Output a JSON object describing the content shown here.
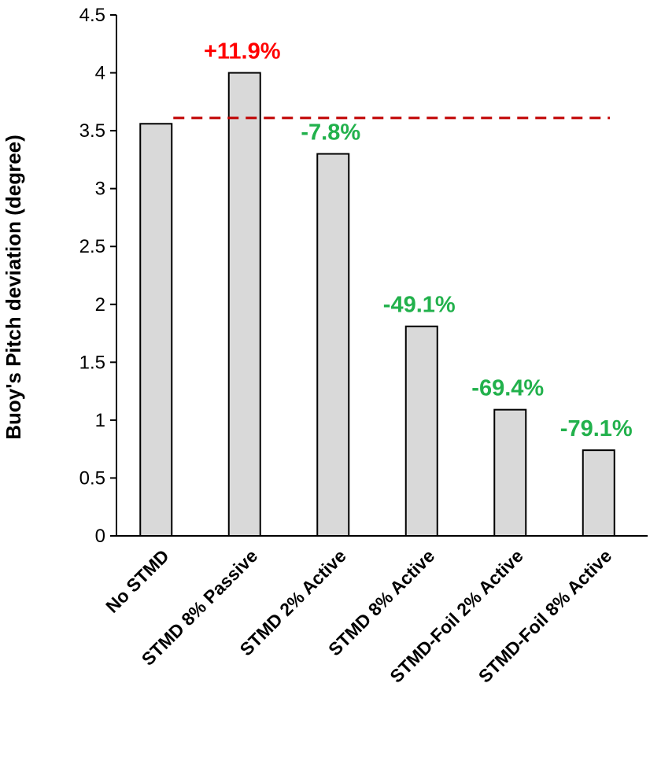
{
  "chart_data": {
    "type": "bar",
    "categories": [
      "No STMD",
      "STMD 8% Passive",
      "STMD 2% Active",
      "STMD 8% Active",
      "STMD-Foil 2% Active",
      "STMD-Foil 8% Active"
    ],
    "values": [
      3.56,
      4.0,
      3.3,
      1.81,
      1.09,
      0.74
    ],
    "annotations": [
      "",
      "+11.9%",
      "-7.8%",
      "-49.1%",
      "-69.4%",
      "-79.1%"
    ],
    "annotation_colors": [
      "#000000",
      "#ff0000",
      "#22b14c",
      "#22b14c",
      "#22b14c",
      "#22b14c"
    ],
    "reference_line": {
      "value": 3.61,
      "color": "#c00000",
      "style": "dashed"
    },
    "ylabel": "Buoy's Pitch deviation (degree)",
    "xlabel": "",
    "ylim": [
      0,
      4.5
    ],
    "yticks": [
      "0",
      "0.5",
      "1",
      "1.5",
      "2",
      "2.5",
      "3",
      "3.5",
      "4",
      "4.5"
    ],
    "bar_color": "#d9d9d9",
    "grid": false
  }
}
